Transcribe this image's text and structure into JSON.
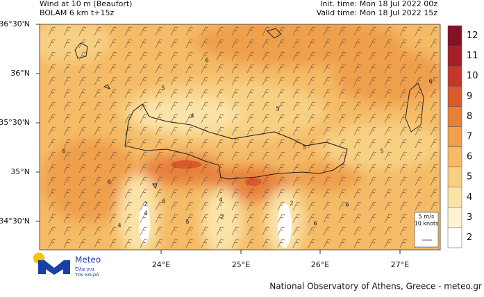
{
  "header": {
    "title_left": [
      "Wind at 10 m (Beaufort)",
      "BOLAM 6 km t+15z"
    ],
    "title_right": [
      "Init. time: Mon 18 Jul 2022 00z",
      "Valid time: Mon 18 Jul 2022 15z"
    ]
  },
  "axes": {
    "lat_labels": [
      "36°30'N",
      "36°N",
      "35°30'N",
      "35°N",
      "34°30'N"
    ],
    "lon_labels": [
      "24°E",
      "25°E",
      "26°E",
      "27°E"
    ]
  },
  "colorbar": {
    "labels": [
      2,
      3,
      4,
      5,
      6,
      7,
      8,
      9,
      10,
      11,
      12
    ],
    "colors": [
      "#ffffff",
      "#fdf3d0",
      "#fbe3a8",
      "#f8d083",
      "#f5bb66",
      "#f09f4c",
      "#e8803a",
      "#da5a2c",
      "#c5372a",
      "#a61f25",
      "#841124"
    ]
  },
  "contour_labels": [
    5,
    6,
    5,
    4,
    6,
    6,
    2,
    4,
    6,
    5,
    4,
    2,
    4,
    2,
    6,
    6,
    5,
    6,
    5
  ],
  "wind_scale": [
    "5 m/s",
    "10 knots"
  ],
  "logo": {
    "name": "Meteo",
    "tagline": [
      "Όλα για",
      "τον καιρό"
    ]
  },
  "footer": "National Observatory of Athens, Greece - meteo.gr"
}
